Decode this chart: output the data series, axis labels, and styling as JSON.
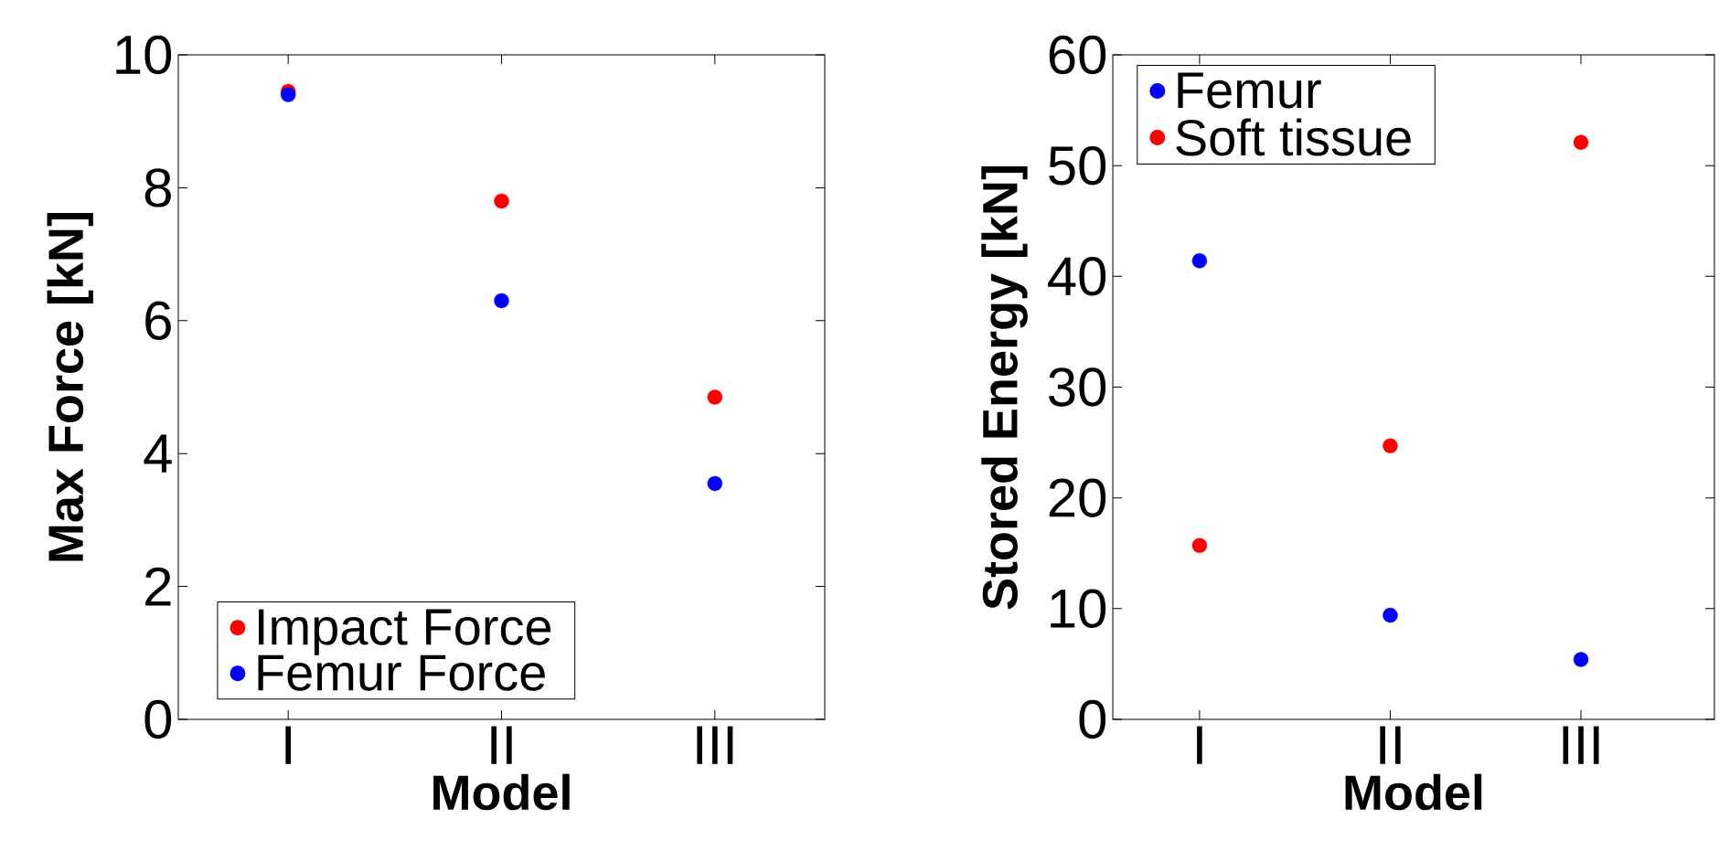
{
  "chart_data": [
    {
      "type": "scatter",
      "categories": [
        "I",
        "II",
        "III"
      ],
      "xlabel": "Model",
      "ylabel": "Max Force [kN]",
      "ylim": [
        0,
        10
      ],
      "yticks": [
        0,
        2,
        4,
        6,
        8,
        10
      ],
      "legend": "bottom left",
      "marker": "circle",
      "series": [
        {
          "name": "Impact Force",
          "color": "#ff0000",
          "values": [
            9.45,
            7.8,
            4.85
          ]
        },
        {
          "name": "Femur Force",
          "color": "#0000ff",
          "values": [
            9.4,
            6.3,
            3.55
          ]
        }
      ]
    },
    {
      "type": "scatter",
      "categories": [
        "I",
        "II",
        "III"
      ],
      "xlabel": "Model",
      "ylabel": "Stored Energy [kN]",
      "ylim": [
        0,
        60
      ],
      "yticks": [
        0,
        10,
        20,
        30,
        40,
        50,
        60
      ],
      "legend": "top left",
      "marker": "circle",
      "series": [
        {
          "name": "Femur",
          "color": "#0000ff",
          "values": [
            41.4,
            9.4,
            5.4
          ]
        },
        {
          "name": "Soft tissue",
          "color": "#ff0000",
          "values": [
            15.7,
            24.7,
            52.1
          ]
        }
      ]
    }
  ]
}
